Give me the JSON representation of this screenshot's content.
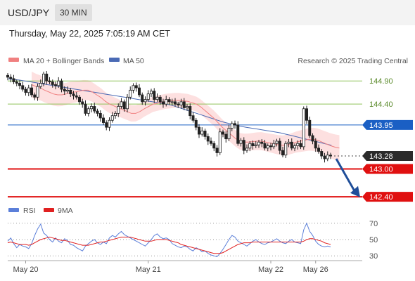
{
  "header": {
    "symbol": "USD/JPY",
    "interval": "30 MIN",
    "timestamp": "Thursday, May 22, 2025 7:05:19 AM CET"
  },
  "colors": {
    "ma20": "#f08080",
    "ma50": "#4a6ab5",
    "band_fill": "#fde0e0",
    "resistance": "#8fc35a",
    "pivot": "#1a5fc4",
    "support": "#e01010",
    "arrow": "#1f4e99",
    "rsi": "#5b7fd9",
    "rsi_ma": "#e02020"
  },
  "chart_data": [
    {
      "type": "candlestick",
      "legend": [
        {
          "label": "MA 20 + Bollinger Bands",
          "color": "#f08080"
        },
        {
          "label": "MA 50",
          "color": "#4a6ab5"
        }
      ],
      "credit": "Research © 2025 Trading Central",
      "ylim": [
        142.25,
        145.1
      ],
      "x_ticks": [
        {
          "label": "May 20",
          "index": 6
        },
        {
          "label": "May 21",
          "index": 47
        },
        {
          "label": "May 22",
          "index": 88
        },
        {
          "label": "May 26",
          "index": 103
        }
      ],
      "levels": [
        {
          "label": "144.90",
          "value": 144.9,
          "kind": "resistance"
        },
        {
          "label": "144.40",
          "value": 144.4,
          "kind": "resistance"
        },
        {
          "label": "143.95",
          "value": 143.95,
          "kind": "pivot"
        },
        {
          "label": "143.28",
          "value": 143.28,
          "kind": "last"
        },
        {
          "label": "143.00",
          "value": 143.0,
          "kind": "support"
        },
        {
          "label": "142.40",
          "value": 142.4,
          "kind": "support"
        }
      ],
      "forecast_arrow": {
        "from": 143.22,
        "to": 142.45
      },
      "close": [
        144.98,
        144.95,
        144.88,
        144.85,
        144.8,
        144.72,
        144.65,
        144.75,
        144.6,
        144.55,
        144.78,
        144.85,
        145.05,
        144.9,
        144.88,
        144.82,
        144.8,
        144.9,
        144.72,
        144.68,
        144.7,
        144.62,
        144.58,
        144.55,
        144.45,
        144.4,
        144.2,
        144.3,
        144.35,
        144.25,
        144.2,
        144.1,
        144.0,
        143.9,
        144.05,
        144.15,
        144.2,
        144.35,
        144.45,
        144.3,
        144.55,
        144.7,
        144.8,
        144.75,
        144.6,
        144.45,
        144.5,
        144.62,
        144.68,
        144.5,
        144.55,
        144.45,
        144.4,
        144.5,
        144.45,
        144.45,
        144.4,
        144.38,
        144.45,
        144.32,
        144.35,
        144.15,
        144.05,
        143.9,
        143.75,
        143.82,
        143.7,
        143.6,
        143.55,
        143.45,
        143.35,
        143.8,
        143.75,
        143.65,
        143.88,
        143.98,
        143.95,
        143.55,
        143.62,
        143.4,
        143.45,
        143.55,
        143.5,
        143.52,
        143.58,
        143.55,
        143.45,
        143.5,
        143.48,
        143.55,
        143.6,
        143.4,
        143.3,
        143.55,
        143.58,
        143.45,
        143.5,
        143.55,
        143.48,
        144.3,
        144.05,
        143.72,
        143.6,
        143.45,
        143.38,
        143.28,
        143.22,
        143.3,
        143.28
      ],
      "series": [
        {
          "name": "MA 20",
          "values": [
            144.82,
            144.78,
            144.75,
            144.7,
            144.66,
            144.62,
            144.6,
            144.6,
            144.62,
            144.65,
            144.66,
            144.68,
            144.7,
            144.7,
            144.66,
            144.6,
            144.54,
            144.46,
            144.4,
            144.36,
            144.32,
            144.28,
            144.24,
            144.2,
            144.2,
            144.24,
            144.3,
            144.35,
            144.4,
            144.42,
            144.44,
            144.46,
            144.47,
            144.48,
            144.48,
            144.47,
            144.46,
            144.43,
            144.4,
            144.34,
            144.26,
            144.18,
            144.1,
            144.0,
            143.9,
            143.82,
            143.74,
            143.66,
            143.6,
            143.58,
            143.58,
            143.59,
            143.6,
            143.6,
            143.58,
            143.56,
            143.54,
            143.52,
            143.51,
            143.52,
            143.55,
            143.58,
            143.6,
            143.62,
            143.64,
            143.64,
            143.62,
            143.58,
            143.54,
            143.5,
            143.47,
            143.45
          ]
        },
        {
          "name": "MA 50",
          "values": [
            144.95,
            144.93,
            144.92,
            144.9,
            144.88,
            144.86,
            144.84,
            144.82,
            144.8,
            144.78,
            144.76,
            144.74,
            144.72,
            144.7,
            144.68,
            144.66,
            144.64,
            144.62,
            144.6,
            144.58,
            144.56,
            144.54,
            144.52,
            144.5,
            144.48,
            144.46,
            144.44,
            144.42,
            144.4,
            144.37,
            144.33,
            144.29,
            144.25,
            144.21,
            144.17,
            144.13,
            144.09,
            144.05,
            144.01,
            143.98,
            143.95,
            143.92,
            143.9,
            143.88,
            143.86,
            143.84,
            143.82,
            143.8,
            143.78,
            143.75,
            143.72,
            143.69,
            143.66,
            143.63,
            143.6,
            143.57,
            143.54,
            143.51
          ]
        }
      ]
    },
    {
      "type": "line",
      "legend": [
        {
          "label": "RSI",
          "color": "#5b7fd9"
        },
        {
          "label": "9MA",
          "color": "#e02020"
        }
      ],
      "ylim": [
        25,
        75
      ],
      "y_ticks": [
        "70",
        "50",
        "30"
      ],
      "series": [
        {
          "name": "RSI",
          "values": [
            48,
            52,
            45,
            40,
            44,
            42,
            41,
            39,
            45,
            55,
            63,
            69,
            58,
            55,
            50,
            47,
            52,
            48,
            46,
            51,
            49,
            44,
            43,
            40,
            38,
            36,
            42,
            45,
            48,
            50,
            46,
            44,
            47,
            45,
            52,
            55,
            53,
            57,
            60,
            56,
            54,
            52,
            50,
            48,
            46,
            44,
            42,
            46,
            50,
            55,
            57,
            53,
            51,
            52,
            50,
            45,
            43,
            41,
            40,
            42,
            41,
            38,
            36,
            40,
            38,
            35,
            36,
            33,
            31,
            30,
            29,
            33,
            38,
            44,
            50,
            55,
            53,
            48,
            46,
            44,
            42,
            45,
            48,
            50,
            47,
            45,
            44,
            46,
            47,
            49,
            51,
            48,
            46,
            45,
            48,
            50,
            47,
            46,
            45,
            62,
            70,
            60,
            55,
            48,
            44,
            42,
            41,
            42,
            41
          ]
        },
        {
          "name": "9MA",
          "values": [
            46,
            47,
            46,
            45,
            44,
            44,
            44,
            43,
            44,
            46,
            48,
            50,
            51,
            52,
            53,
            52,
            51,
            50,
            49,
            49,
            48,
            47,
            46,
            45,
            44,
            43,
            43,
            43,
            44,
            45,
            46,
            47,
            47,
            48,
            49,
            50,
            51,
            52,
            53,
            53,
            53,
            53,
            52,
            51,
            50,
            49,
            48,
            48,
            48,
            49,
            50,
            50,
            50,
            50,
            49,
            48,
            47,
            46,
            44,
            43,
            42,
            41,
            40,
            39,
            38,
            37,
            36,
            35,
            34,
            33,
            33,
            33,
            34,
            36,
            38,
            40,
            42,
            44,
            45,
            46,
            46,
            46,
            47,
            47,
            47,
            47,
            47,
            47,
            47,
            47,
            47,
            47,
            47,
            47,
            47,
            47,
            47,
            47,
            47,
            48,
            50,
            51,
            51,
            50,
            49,
            48,
            46,
            45,
            44
          ]
        }
      ]
    }
  ]
}
